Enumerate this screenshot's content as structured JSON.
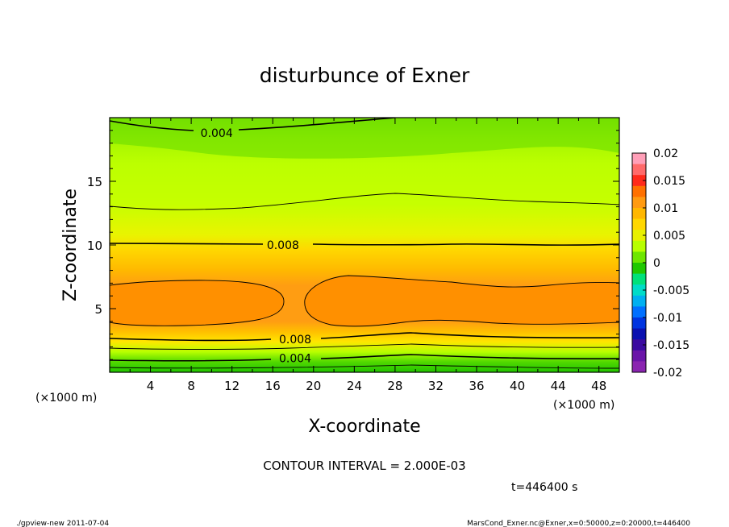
{
  "chart_data": {
    "type": "heatmap",
    "title": "disturbunce of Exner",
    "xlabel": "X-coordinate",
    "ylabel": "Z-coordinate",
    "x_unit": "(×1000 m)",
    "y_unit": "(×1000 m)",
    "xlim": [
      0,
      50
    ],
    "ylim": [
      0,
      20
    ],
    "x_ticks": [
      4,
      8,
      12,
      16,
      20,
      24,
      28,
      32,
      36,
      40,
      44,
      48
    ],
    "y_ticks": [
      5,
      10,
      15
    ],
    "colorbar": {
      "ticks": [
        "0.02",
        "0.015",
        "0.01",
        "0.005",
        "0",
        "-0.005",
        "-0.01",
        "-0.015",
        "-0.02"
      ],
      "range": [
        -0.02,
        0.02
      ],
      "colors": [
        "#ff9fb8",
        "#ff6a6a",
        "#ff2a1a",
        "#ff7000",
        "#ff9a10",
        "#ffb700",
        "#ffd700",
        "#e8f000",
        "#b8ff00",
        "#6ee600",
        "#20c800",
        "#00e17a",
        "#00dcc8",
        "#00b0f0",
        "#0070ff",
        "#0034e0",
        "#0a10b0",
        "#3a0aa0",
        "#6a14a8",
        "#8a24b0"
      ]
    },
    "contour_labels": [
      {
        "text": "0.004",
        "x": 10.5,
        "z": 18.8
      },
      {
        "text": "0.008",
        "x": 17.0,
        "z": 10.0
      },
      {
        "text": "0.008",
        "x": 18.2,
        "z": 2.6
      },
      {
        "text": "0.004",
        "x": 18.2,
        "z": 1.1
      }
    ],
    "contour_interval_text": "CONTOUR INTERVAL = 2.000E-03",
    "time_text": "t=446400 s"
  },
  "footer": {
    "left": "./gpview-new 2011-07-04",
    "right": "MarsCond_Exner.nc@Exner,x=0:50000,z=0:20000,t=446400"
  }
}
